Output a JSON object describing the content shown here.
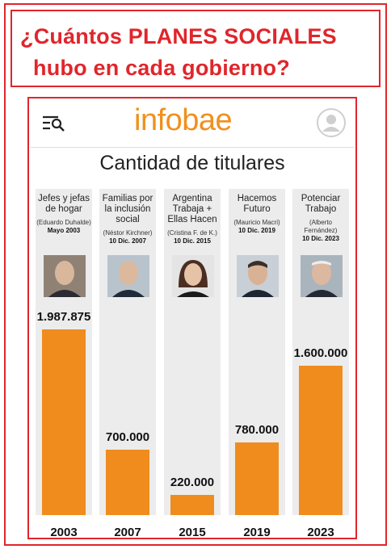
{
  "headline": {
    "line1": "¿Cuántos PLANES SOCIALES",
    "line2": "hubo en cada gobierno?"
  },
  "header": {
    "logo": "infobae",
    "menu_icon": "menu-search-icon",
    "avatar_icon": "user-avatar-icon"
  },
  "colors": {
    "accent": "#e0262b",
    "brand": "#f0901e",
    "bar": "#f08c1e",
    "column_bg": "#ececec"
  },
  "chart_data": {
    "type": "bar",
    "title": "Cantidad de titulares",
    "categories": [
      "2003",
      "2007",
      "2015",
      "2019",
      "2023"
    ],
    "values": [
      1987875,
      700000,
      220000,
      780000,
      1600000
    ],
    "value_labels": [
      "1.987.875",
      "700.000",
      "220.000",
      "780.000",
      "1.600.000"
    ],
    "programs": [
      {
        "name": "Jefes y jefas de hogar",
        "leader": "(Eduardo Duhalde)",
        "date": "Mayo 2003"
      },
      {
        "name": "Familias por la inclusión social",
        "leader": "(Néstor Kirchner)",
        "date": "10 Dic. 2007"
      },
      {
        "name": "Argentina Trabaja + Ellas Hacen",
        "leader": "(Cristina F. de K.)",
        "date": "10 Dic. 2015"
      },
      {
        "name": "Hacemos Futuro",
        "leader": "(Mauricio Macri)",
        "date": "10 Dic. 2019"
      },
      {
        "name": "Potenciar Trabajo",
        "leader": "(Alberto Fernández)",
        "date": "10 Dic. 2023"
      }
    ],
    "ylim": [
      0,
      2000000
    ],
    "grid": false,
    "legend": "none"
  }
}
